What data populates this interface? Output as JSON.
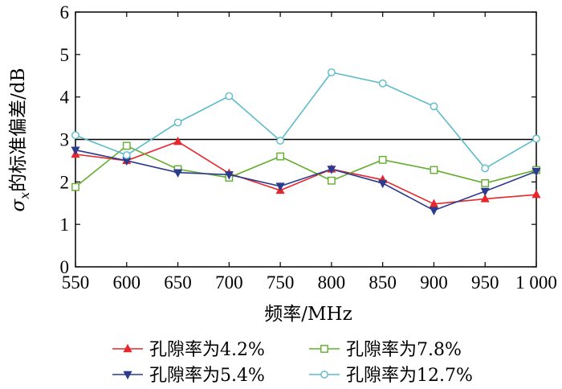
{
  "chart_data": {
    "type": "line",
    "title": "",
    "xlabel": "频率/MHz",
    "ylabel_symbol": "σ",
    "ylabel_subscript": "x",
    "ylabel_text": "的标准偏差/dB",
    "x": [
      550,
      600,
      650,
      700,
      750,
      800,
      850,
      900,
      950,
      1000
    ],
    "x_tick_labels": [
      "550",
      "600",
      "650",
      "700",
      "750",
      "800",
      "850",
      "900",
      "950",
      "1 000"
    ],
    "y_ticks": [
      0,
      1,
      2,
      3,
      4,
      5,
      6
    ],
    "xlim": [
      550,
      1000
    ],
    "ylim": [
      0,
      6
    ],
    "grid": false,
    "reference_line": {
      "y": 3,
      "color": "#000000"
    },
    "legend_position": "bottom",
    "series": [
      {
        "name": "孔隙率为4.2%",
        "color": "#e8262b",
        "marker": "triangle-up",
        "values": [
          2.65,
          2.5,
          2.95,
          2.2,
          1.8,
          2.3,
          2.05,
          1.48,
          1.6,
          1.7
        ]
      },
      {
        "name": "孔隙率为7.8%",
        "color": "#62ad2e",
        "marker": "square",
        "values": [
          1.88,
          2.85,
          2.3,
          2.1,
          2.6,
          2.03,
          2.52,
          2.28,
          1.97,
          2.28
        ]
      },
      {
        "name": "孔隙率为5.4%",
        "color": "#2c3b8e",
        "marker": "triangle-down",
        "values": [
          2.75,
          2.5,
          2.22,
          2.17,
          1.9,
          2.3,
          1.97,
          1.33,
          1.78,
          2.25
        ]
      },
      {
        "name": "孔隙率为12.7%",
        "color": "#5bbcc7",
        "marker": "circle",
        "values": [
          3.1,
          2.63,
          3.4,
          4.02,
          2.97,
          4.58,
          4.32,
          3.78,
          2.32,
          3.02
        ]
      }
    ]
  }
}
